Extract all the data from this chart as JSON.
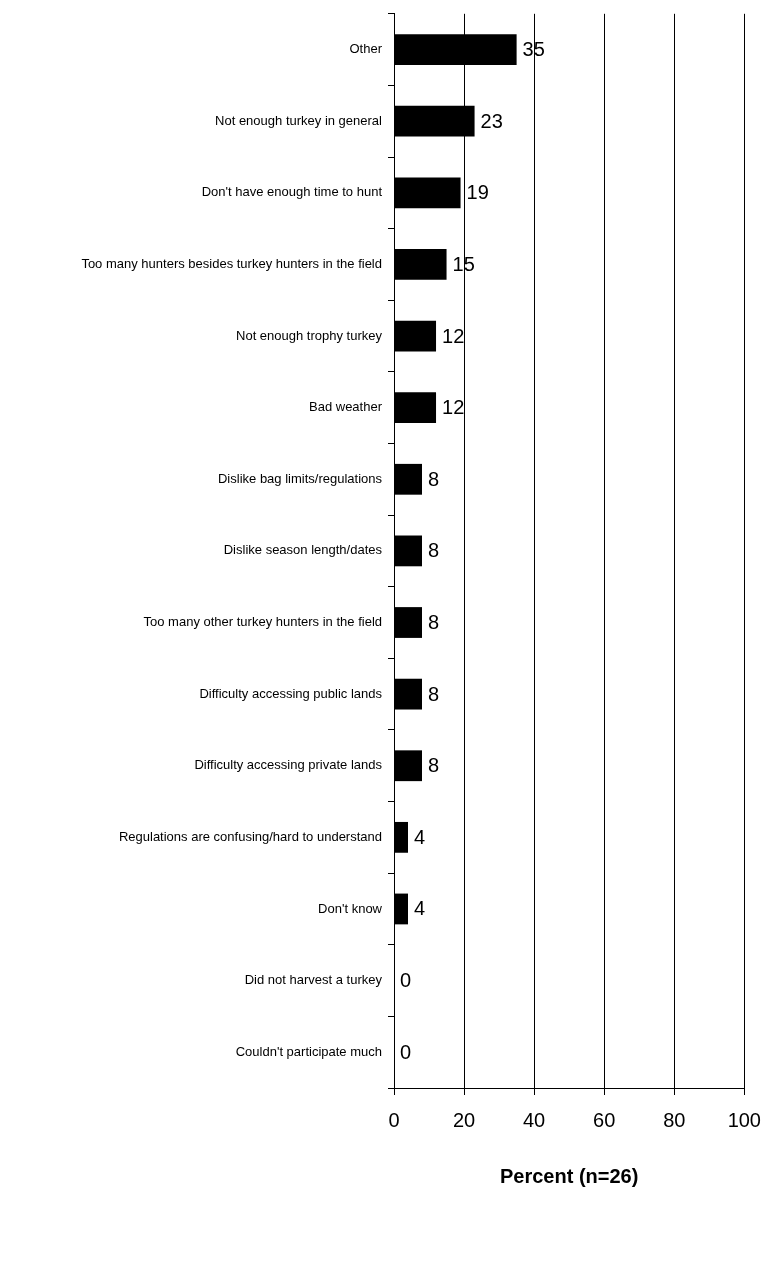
{
  "chart_data": {
    "type": "bar",
    "orientation": "horizontal",
    "categories": [
      "Other",
      "Not enough turkey in general",
      "Don't have enough time to hunt",
      "Too many hunters besides turkey hunters in the field",
      "Not enough trophy turkey",
      "Bad weather",
      "Dislike bag limits/regulations",
      "Dislike season length/dates",
      "Too many other turkey hunters in the field",
      "Difficulty accessing public lands",
      "Difficulty accessing private lands",
      "Regulations are confusing/hard to understand",
      "Don't know",
      "Did not harvest a turkey",
      "Couldn't participate much"
    ],
    "values": [
      35,
      23,
      19,
      15,
      12,
      12,
      8,
      8,
      8,
      8,
      8,
      4,
      4,
      0,
      0
    ],
    "color": "#000000",
    "xlim": [
      0,
      100
    ],
    "xticks": [
      0,
      20,
      40,
      60,
      80,
      100
    ],
    "xlabel": "Percent (n=26)",
    "grid": "x",
    "data_labels": true
  }
}
